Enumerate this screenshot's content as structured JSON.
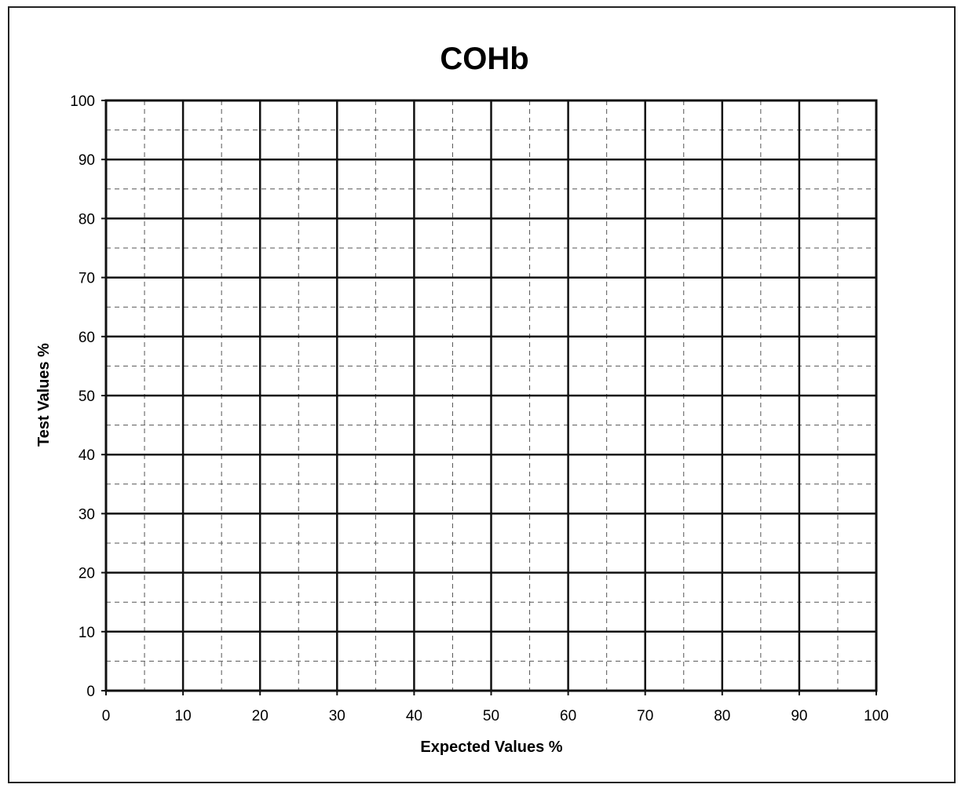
{
  "chart_data": {
    "type": "scatter",
    "title": "COHb",
    "xlabel": "Expected Values %",
    "ylabel": "Test Values %",
    "xlim": [
      0,
      100
    ],
    "ylim": [
      0,
      100
    ],
    "x_ticks": [
      "0",
      "10",
      "20",
      "30",
      "40",
      "50",
      "60",
      "70",
      "80",
      "90",
      "100"
    ],
    "y_ticks": [
      "0",
      "10",
      "20",
      "30",
      "40",
      "50",
      "60",
      "70",
      "80",
      "90",
      "100"
    ],
    "major_grid_step": 10,
    "minor_grid_step": 5,
    "major_grid": "solid",
    "minor_grid": "dashed",
    "series": []
  }
}
